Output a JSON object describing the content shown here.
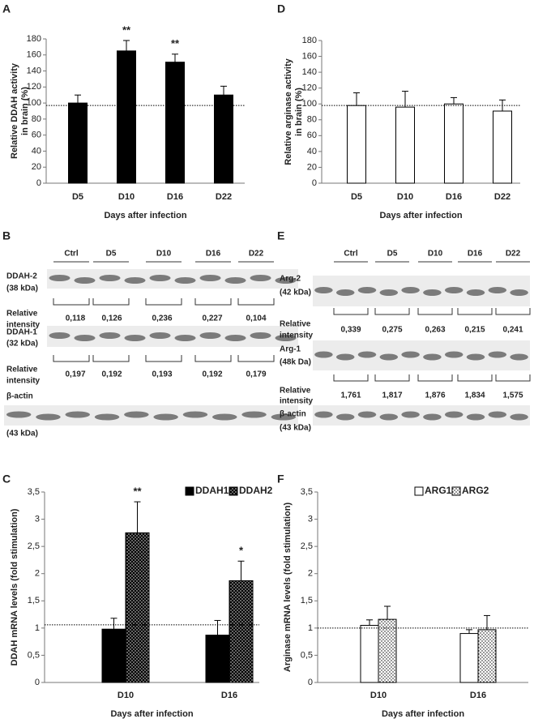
{
  "chart_data": [
    {
      "type": "bar",
      "panel": "A",
      "ylabel": [
        "Relative DDAH activity",
        "in brain (%)"
      ],
      "xlabel": "Days after infection",
      "categories": [
        "D5",
        "D10",
        "D16",
        "D22"
      ],
      "values": [
        100,
        165,
        151,
        110
      ],
      "errors": [
        10,
        13,
        10,
        11
      ],
      "color": "#000000",
      "ylim": [
        0,
        180
      ],
      "yticks": [
        0,
        20,
        40,
        60,
        80,
        100,
        120,
        140,
        160,
        180
      ],
      "reference_line": 97,
      "annotations": [
        {
          "text": "**",
          "x": "D10"
        },
        {
          "text": "**",
          "x": "D16"
        }
      ]
    },
    {
      "type": "bar",
      "panel": "D",
      "ylabel": [
        "Relative arginase activity",
        "in brain (%)"
      ],
      "xlabel": "Days after infection",
      "categories": [
        "D5",
        "D10",
        "D16",
        "D22"
      ],
      "values": [
        98,
        96,
        100,
        91
      ],
      "errors": [
        16,
        20,
        8,
        14
      ],
      "color": "#ffffff",
      "ylim": [
        0,
        180
      ],
      "yticks": [
        0,
        20,
        40,
        60,
        80,
        100,
        120,
        140,
        160,
        180
      ],
      "reference_line": 98
    },
    {
      "type": "bar",
      "panel": "C",
      "ylabel": [
        "DDAH mRNA levels (fold stimulation)"
      ],
      "xlabel": "Days after infection",
      "categories": [
        "D10",
        "D16"
      ],
      "series": [
        {
          "name": "DDAH1",
          "color": "#000000",
          "values": [
            0.98,
            0.87
          ],
          "errors": [
            0.2,
            0.27
          ]
        },
        {
          "name": "DDAH2",
          "color": "#000000",
          "pattern": "dots",
          "values": [
            2.75,
            1.87
          ],
          "errors": [
            0.57,
            0.36
          ]
        }
      ],
      "ylim": [
        0,
        3.5
      ],
      "yticks": [
        0,
        {
          "value": 0.5,
          "label": "0,5"
        },
        1,
        {
          "value": 1.5,
          "label": "1,5"
        },
        2,
        {
          "value": 2.5,
          "label": "2,5"
        },
        3,
        {
          "value": 3.5,
          "label": "3,5"
        }
      ],
      "reference_line": 1.06,
      "legend": "top-right",
      "annotations": [
        {
          "text": "**",
          "x": "D10",
          "series": "DDAH2"
        },
        {
          "text": "*",
          "x": "D16",
          "series": "DDAH2"
        }
      ]
    },
    {
      "type": "bar",
      "panel": "F",
      "ylabel": [
        "Arginase mRNA levels (fold stimulation)"
      ],
      "xlabel": "Days after infection",
      "categories": [
        "D10",
        "D16"
      ],
      "series": [
        {
          "name": "ARG1",
          "color": "#ffffff",
          "values": [
            1.05,
            0.9
          ],
          "errors": [
            0.1,
            0.07
          ]
        },
        {
          "name": "ARG2",
          "color": "#ffffff",
          "pattern": "dots",
          "values": [
            1.16,
            0.97
          ],
          "errors": [
            0.24,
            0.26
          ]
        }
      ],
      "ylim": [
        0,
        3.5
      ],
      "yticks": [
        0,
        {
          "value": 0.5,
          "label": "0,5"
        },
        1,
        {
          "value": 1.5,
          "label": "1,5"
        },
        2,
        {
          "value": 2.5,
          "label": "2,5"
        },
        3,
        {
          "value": 3.5,
          "label": "3,5"
        }
      ],
      "reference_line": 1.0,
      "legend": "top-right"
    }
  ],
  "blots": [
    {
      "panel": "B",
      "lanes": [
        "Ctrl",
        "D5",
        "D10",
        "D16",
        "D22"
      ],
      "rows": [
        {
          "label": [
            "DDAH-2",
            "(38 kDa)"
          ],
          "intensity_label": [
            "Relative",
            "intensity"
          ],
          "intensities": [
            "0,118",
            "0,126",
            "0,236",
            "0,227",
            "0,104"
          ]
        },
        {
          "label": [
            "DDAH-1",
            "(32 kDa)"
          ],
          "intensity_label": [
            "Relative",
            "intensity"
          ],
          "intensities": [
            "0,197",
            "0,192",
            "0,193",
            "0,192",
            "0,179"
          ]
        },
        {
          "label": [
            "β-actin",
            "(43 kDa)"
          ]
        }
      ]
    },
    {
      "panel": "E",
      "lanes": [
        "Ctrl",
        "D5",
        "D10",
        "D16",
        "D22"
      ],
      "rows": [
        {
          "label": [
            "Arg-2",
            "(42 kDa)"
          ],
          "intensity_label": [
            "Relative",
            "intensity"
          ],
          "intensities": [
            "0,339",
            "0,275",
            "0,263",
            "0,215",
            "0,241"
          ]
        },
        {
          "label": [
            "Arg-1",
            "(48k Da)"
          ],
          "intensity_label": [
            "Relative",
            "intensity"
          ],
          "intensities": [
            "1,761",
            "1,817",
            "1,876",
            "1,834",
            "1,575"
          ]
        },
        {
          "label": [
            "β-actin",
            "(43 kDa)"
          ]
        }
      ]
    }
  ]
}
